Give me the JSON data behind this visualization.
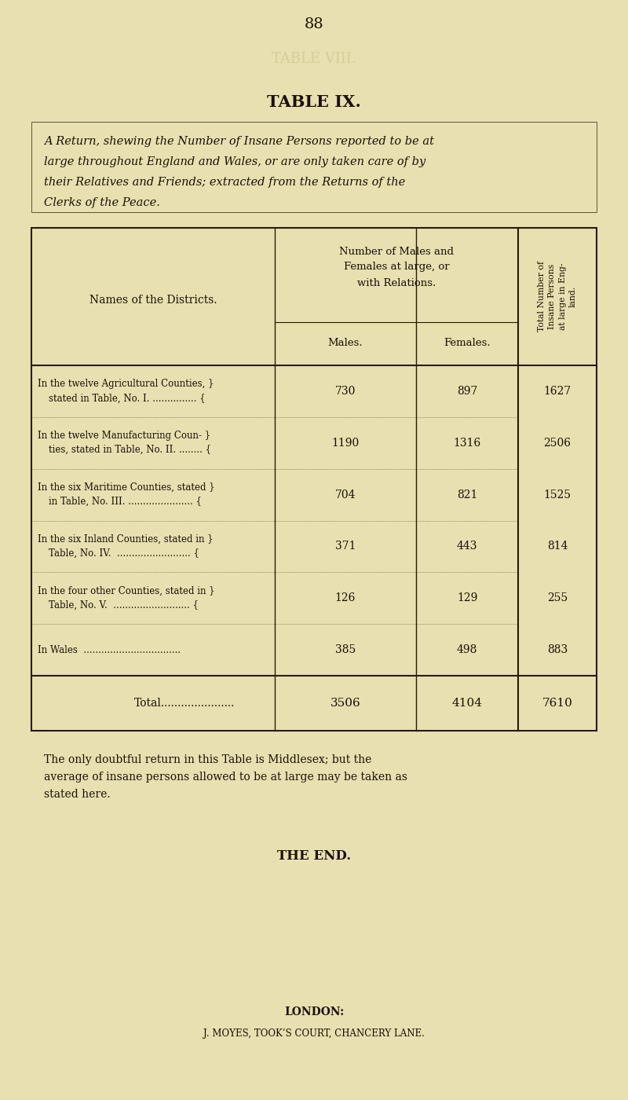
{
  "page_number": "88",
  "table_title": "TABLE IX.",
  "description_lines": [
    "A Return, shewing the Number of Insane Persons reported to be at",
    "large throughout England and Wales, or are only taken care of by",
    "their Relatives and Friends; extracted from the Returns of the",
    "Clerks of the Peace."
  ],
  "col_header1": "Names of the Districts.",
  "col_header2_line1": "Number of Males and",
  "col_header2_line2": "Females at large, or",
  "col_header2_line3": "with Relations.",
  "col_header3_line1": "Males.",
  "col_header3_line2": "Females.",
  "col_header4_line1": "Total Number of",
  "col_header4_line2": "Insane Persons",
  "col_header4_line3": "at large in Eng-",
  "col_header4_line4": "land.",
  "rows": [
    {
      "district_line1": "In the twelve Agricultural Counties, }",
      "district_line2": "stated in Table, No. I. ............... {",
      "males": "730",
      "females": "897",
      "total": "1627"
    },
    {
      "district_line1": "In the twelve Manufacturing Coun- }",
      "district_line2": "ties, stated in Table, No. II. ........ {",
      "males": "1190",
      "females": "1316",
      "total": "2506"
    },
    {
      "district_line1": "In the six Maritime Counties, stated }",
      "district_line2": "in Table, No. III. ...................... {",
      "males": "704",
      "females": "821",
      "total": "1525"
    },
    {
      "district_line1": "In the six Inland Counties, stated in }",
      "district_line2": "Table, No. IV.  ......................... {",
      "males": "371",
      "females": "443",
      "total": "814"
    },
    {
      "district_line1": "In the four other Counties, stated in }",
      "district_line2": "Table, No. V.  .......................... {",
      "males": "126",
      "females": "129",
      "total": "255"
    },
    {
      "district_line1": "In Wales  .................................",
      "district_line2": "",
      "males": "385",
      "females": "498",
      "total": "883"
    }
  ],
  "total_row": {
    "label": "Total......................",
    "males": "3506",
    "females": "4104",
    "total": "7610"
  },
  "footnote_lines": [
    "The only doubtful return in this Table is Middlesex; but the",
    "average of insane persons allowed to be at large may be taken as",
    "stated here."
  ],
  "the_end": "THE END.",
  "publisher_line1": "LONDON:",
  "publisher_line2": "J. MOYES, TOOK’S COURT, CHANCERY LANE.",
  "bg_color": "#e8e0b0",
  "text_color": "#1a1008",
  "border_color": "#2a1a08"
}
